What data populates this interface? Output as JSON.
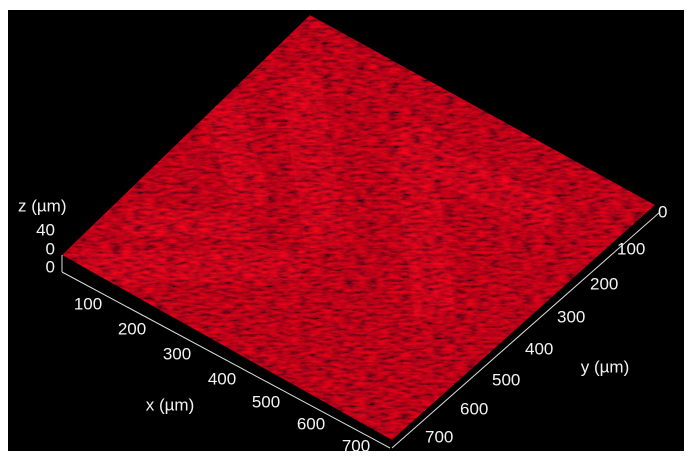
{
  "axes": {
    "x": {
      "label": "x (µm)",
      "ticks": [
        "100",
        "200",
        "300",
        "400",
        "500",
        "600",
        "700"
      ]
    },
    "y": {
      "label": "y (µm)",
      "ticks": [
        "0",
        "100",
        "200",
        "300",
        "400",
        "500",
        "600",
        "700"
      ]
    },
    "z": {
      "label": "z (µm)",
      "ticks": [
        "40",
        "0",
        "0"
      ]
    }
  }
}
